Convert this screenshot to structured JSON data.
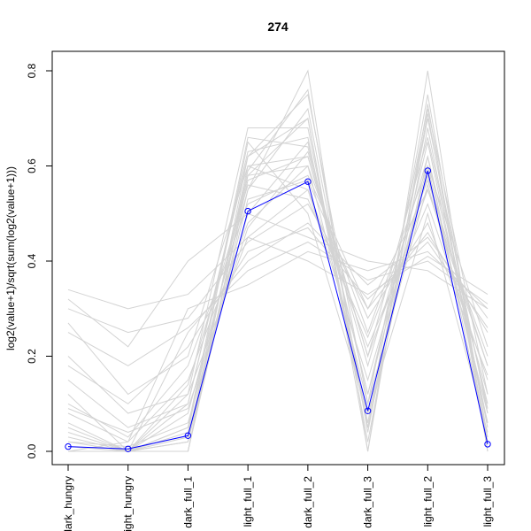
{
  "chart_data": {
    "type": "line",
    "title": "274",
    "xlabel": "",
    "ylabel": "log2(value+1)/sqrt(sum(log2(value+1)))",
    "categories": [
      "dark_hungry",
      "light_hungry",
      "dark_full_1",
      "light_full_1",
      "dark_full_2",
      "dark_full_3",
      "light_full_2",
      "light_full_3"
    ],
    "ylim": [
      0,
      0.82
    ],
    "yticks": [
      0.0,
      0.2,
      0.4,
      0.6,
      0.8
    ],
    "ytick_labels": [
      "0.0",
      "0.2",
      "0.4",
      "0.6",
      "0.8"
    ],
    "grid": false,
    "legend": "none",
    "series": [
      {
        "values": [
          0.01,
          0.005,
          0.033,
          0.505,
          0.567,
          0.085,
          0.59,
          0.015
        ],
        "color": "#0000ff",
        "markers": true
      }
    ],
    "background_profiles_color": "#d3d3d3",
    "background_profiles": [
      [
        0.0,
        0.0,
        0.0,
        0.55,
        0.8,
        0.0,
        0.8,
        0.0
      ],
      [
        0.34,
        0.3,
        0.33,
        0.45,
        0.4,
        0.33,
        0.41,
        0.33
      ],
      [
        0.32,
        0.22,
        0.4,
        0.5,
        0.45,
        0.4,
        0.38,
        0.3
      ],
      [
        0.3,
        0.25,
        0.28,
        0.44,
        0.52,
        0.3,
        0.46,
        0.25
      ],
      [
        0.27,
        0.12,
        0.2,
        0.6,
        0.62,
        0.2,
        0.55,
        0.18
      ],
      [
        0.2,
        0.08,
        0.12,
        0.68,
        0.68,
        0.05,
        0.7,
        0.08
      ],
      [
        0.15,
        0.05,
        0.1,
        0.62,
        0.75,
        0.1,
        0.72,
        0.12
      ],
      [
        0.12,
        0.0,
        0.05,
        0.58,
        0.7,
        0.02,
        0.68,
        0.05
      ],
      [
        0.1,
        0.03,
        0.18,
        0.52,
        0.58,
        0.3,
        0.55,
        0.2
      ],
      [
        0.08,
        0.02,
        0.15,
        0.48,
        0.6,
        0.25,
        0.6,
        0.22
      ],
      [
        0.05,
        0.0,
        0.0,
        0.57,
        0.62,
        0.18,
        0.62,
        0.1
      ],
      [
        0.03,
        0.0,
        0.02,
        0.6,
        0.55,
        0.15,
        0.58,
        0.08
      ],
      [
        0.02,
        0.01,
        0.06,
        0.5,
        0.65,
        0.12,
        0.65,
        0.06
      ],
      [
        0.0,
        0.0,
        0.04,
        0.65,
        0.5,
        0.08,
        0.5,
        0.04
      ],
      [
        0.0,
        0.0,
        0.08,
        0.55,
        0.72,
        0.06,
        0.75,
        0.03
      ],
      [
        0.0,
        0.0,
        0.12,
        0.45,
        0.55,
        0.22,
        0.52,
        0.15
      ],
      [
        0.01,
        0.0,
        0.25,
        0.4,
        0.48,
        0.35,
        0.45,
        0.28
      ],
      [
        0.0,
        0.02,
        0.3,
        0.35,
        0.42,
        0.38,
        0.42,
        0.3
      ],
      [
        0.06,
        0.0,
        0.1,
        0.63,
        0.66,
        0.05,
        0.62,
        0.02
      ],
      [
        0.04,
        0.0,
        0.0,
        0.58,
        0.6,
        0.1,
        0.56,
        0.12
      ],
      [
        0.0,
        0.0,
        0.02,
        0.53,
        0.57,
        0.28,
        0.48,
        0.16
      ],
      [
        0.09,
        0.04,
        0.09,
        0.47,
        0.63,
        0.2,
        0.66,
        0.09
      ],
      [
        0.0,
        0.0,
        0.0,
        0.62,
        0.7,
        0.0,
        0.73,
        0.0
      ],
      [
        0.02,
        0.0,
        0.14,
        0.56,
        0.53,
        0.24,
        0.57,
        0.18
      ],
      [
        0.18,
        0.1,
        0.22,
        0.42,
        0.47,
        0.32,
        0.44,
        0.26
      ],
      [
        0.25,
        0.18,
        0.26,
        0.38,
        0.44,
        0.36,
        0.4,
        0.31
      ],
      [
        0.0,
        0.0,
        0.05,
        0.66,
        0.64,
        0.12,
        0.6,
        0.06
      ],
      [
        0.0,
        0.0,
        0.03,
        0.59,
        0.76,
        0.04,
        0.71,
        0.02
      ]
    ]
  }
}
